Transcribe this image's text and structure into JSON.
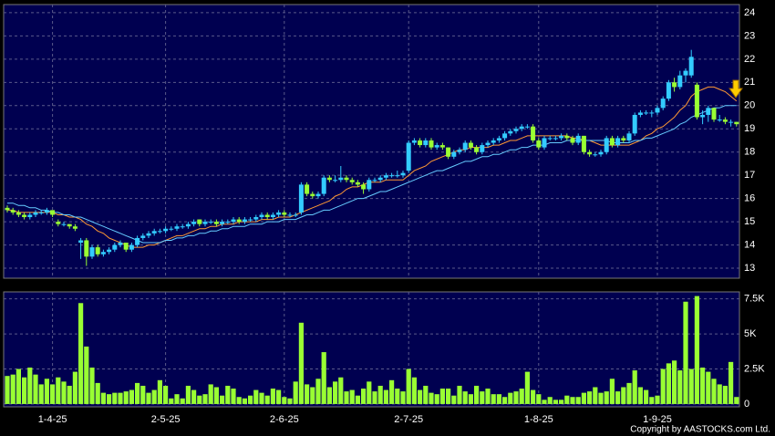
{
  "chart_data": {
    "type": "candlestick",
    "copyright": "Copyright by AASTOCKS.com Ltd.",
    "categories": [
      null,
      null,
      null,
      null,
      null,
      null,
      null,
      null,
      "1-4-25",
      null,
      null,
      null,
      null,
      null,
      null,
      null,
      null,
      null,
      null,
      null,
      null,
      null,
      null,
      null,
      null,
      null,
      null,
      null,
      "2-5-25",
      null,
      null,
      null,
      null,
      null,
      null,
      null,
      null,
      null,
      null,
      null,
      null,
      null,
      null,
      null,
      null,
      null,
      null,
      null,
      null,
      "2-6-25",
      null,
      null,
      null,
      null,
      null,
      null,
      null,
      null,
      null,
      null,
      null,
      null,
      null,
      null,
      null,
      null,
      null,
      null,
      null,
      null,
      null,
      "2-7-25",
      null,
      null,
      null,
      null,
      null,
      null,
      null,
      null,
      null,
      null,
      null,
      null,
      null,
      null,
      null,
      null,
      null,
      null,
      null,
      null,
      null,
      null,
      "1-8-25",
      null,
      null,
      null,
      null,
      null,
      null,
      null,
      null,
      null,
      null,
      null,
      null,
      null,
      null,
      null,
      null,
      null,
      null,
      null,
      null,
      "1-9-25",
      null,
      null,
      null,
      null,
      null,
      null,
      null,
      null,
      null,
      null,
      null,
      null,
      null,
      null
    ],
    "up_color": "#33ccff",
    "down_color": "#99ff33",
    "ohlc": [
      [
        15.6,
        15.7,
        15.4,
        15.5
      ],
      [
        15.5,
        15.6,
        15.3,
        15.4
      ],
      [
        15.4,
        15.5,
        15.2,
        15.3
      ],
      [
        15.3,
        15.4,
        15.1,
        15.2
      ],
      [
        15.2,
        15.4,
        15.1,
        15.3
      ],
      [
        15.3,
        15.5,
        15.2,
        15.4
      ],
      [
        15.4,
        15.5,
        15.3,
        15.4
      ],
      [
        15.4,
        15.6,
        15.3,
        15.5
      ],
      [
        15.5,
        15.5,
        15.2,
        15.3
      ],
      [
        15.0,
        15.1,
        14.8,
        14.9
      ],
      [
        14.9,
        15.0,
        14.8,
        14.9
      ],
      [
        14.9,
        14.9,
        14.7,
        14.8
      ],
      [
        14.8,
        14.9,
        14.6,
        14.7
      ],
      [
        14.1,
        14.3,
        13.4,
        14.2
      ],
      [
        14.2,
        14.3,
        13.1,
        13.5
      ],
      [
        13.5,
        14.0,
        13.4,
        13.9
      ],
      [
        13.9,
        14.0,
        13.5,
        13.6
      ],
      [
        13.6,
        13.8,
        13.5,
        13.7
      ],
      [
        13.7,
        13.9,
        13.6,
        13.8
      ],
      [
        13.8,
        14.1,
        13.7,
        14.0
      ],
      [
        14.0,
        14.2,
        13.9,
        14.1
      ],
      [
        14.1,
        14.1,
        13.7,
        13.8
      ],
      [
        13.8,
        14.1,
        13.7,
        14.0
      ],
      [
        14.0,
        14.4,
        13.9,
        14.3
      ],
      [
        14.3,
        14.5,
        14.2,
        14.4
      ],
      [
        14.4,
        14.6,
        14.3,
        14.5
      ],
      [
        14.5,
        14.7,
        14.4,
        14.6
      ],
      [
        14.6,
        14.7,
        14.5,
        14.6
      ],
      [
        14.6,
        14.8,
        14.5,
        14.7
      ],
      [
        14.7,
        14.8,
        14.6,
        14.7
      ],
      [
        14.7,
        14.9,
        14.6,
        14.8
      ],
      [
        14.8,
        14.9,
        14.7,
        14.8
      ],
      [
        14.8,
        15.0,
        14.7,
        14.9
      ],
      [
        14.9,
        15.1,
        14.8,
        15.0
      ],
      [
        15.1,
        15.1,
        14.8,
        14.9
      ],
      [
        14.9,
        15.1,
        14.8,
        15.0
      ],
      [
        15.0,
        15.1,
        14.9,
        15.0
      ],
      [
        15.0,
        15.1,
        14.8,
        14.9
      ],
      [
        14.9,
        15.1,
        14.8,
        15.0
      ],
      [
        15.0,
        15.1,
        14.9,
        15.0
      ],
      [
        15.0,
        15.2,
        14.9,
        15.1
      ],
      [
        15.1,
        15.2,
        14.9,
        15.0
      ],
      [
        15.0,
        15.2,
        14.9,
        15.1
      ],
      [
        15.1,
        15.2,
        15.0,
        15.1
      ],
      [
        15.1,
        15.3,
        15.0,
        15.2
      ],
      [
        15.2,
        15.4,
        15.1,
        15.3
      ],
      [
        15.3,
        15.4,
        15.1,
        15.2
      ],
      [
        15.2,
        15.4,
        15.1,
        15.3
      ],
      [
        15.3,
        15.5,
        15.2,
        15.4
      ],
      [
        15.4,
        15.5,
        15.2,
        15.3
      ],
      [
        15.3,
        15.4,
        15.2,
        15.3
      ],
      [
        15.3,
        15.4,
        15.2,
        15.3
      ],
      [
        15.4,
        16.7,
        15.3,
        16.6
      ],
      [
        16.6,
        16.7,
        16.1,
        16.2
      ],
      [
        16.2,
        16.3,
        16.0,
        16.1
      ],
      [
        16.1,
        16.3,
        16.0,
        16.2
      ],
      [
        16.2,
        17.0,
        16.1,
        16.9
      ],
      [
        16.9,
        17.0,
        16.7,
        16.8
      ],
      [
        16.8,
        17.0,
        16.7,
        16.8
      ],
      [
        16.8,
        17.4,
        16.7,
        16.9
      ],
      [
        16.9,
        17.0,
        16.7,
        16.8
      ],
      [
        16.8,
        16.9,
        16.6,
        16.7
      ],
      [
        16.7,
        16.8,
        16.5,
        16.6
      ],
      [
        16.6,
        16.7,
        16.2,
        16.4
      ],
      [
        16.4,
        16.9,
        16.3,
        16.8
      ],
      [
        16.8,
        16.9,
        16.7,
        16.8
      ],
      [
        16.8,
        17.0,
        16.7,
        16.9
      ],
      [
        16.9,
        17.1,
        16.8,
        17.0
      ],
      [
        17.0,
        17.1,
        16.9,
        17.0
      ],
      [
        17.0,
        17.2,
        16.9,
        17.0
      ],
      [
        17.0,
        17.2,
        16.9,
        17.1
      ],
      [
        17.2,
        18.5,
        17.1,
        18.4
      ],
      [
        18.4,
        18.6,
        18.3,
        18.5
      ],
      [
        18.5,
        18.6,
        18.2,
        18.3
      ],
      [
        18.3,
        18.6,
        18.2,
        18.5
      ],
      [
        18.5,
        18.6,
        18.1,
        18.2
      ],
      [
        18.2,
        18.4,
        18.1,
        18.3
      ],
      [
        18.3,
        18.4,
        18.1,
        18.2
      ],
      [
        18.2,
        18.2,
        17.7,
        17.8
      ],
      [
        17.8,
        18.1,
        17.7,
        18.0
      ],
      [
        18.0,
        18.2,
        17.9,
        18.1
      ],
      [
        18.1,
        18.5,
        18.0,
        18.4
      ],
      [
        18.4,
        18.5,
        18.1,
        18.2
      ],
      [
        18.2,
        18.3,
        17.9,
        18.0
      ],
      [
        18.0,
        18.4,
        17.9,
        18.3
      ],
      [
        18.3,
        18.5,
        18.2,
        18.4
      ],
      [
        18.4,
        18.6,
        18.3,
        18.5
      ],
      [
        18.5,
        18.7,
        18.4,
        18.6
      ],
      [
        18.6,
        18.9,
        18.5,
        18.8
      ],
      [
        18.8,
        19.0,
        18.7,
        18.9
      ],
      [
        18.9,
        19.1,
        18.8,
        19.0
      ],
      [
        19.0,
        19.2,
        18.9,
        19.1
      ],
      [
        19.1,
        19.2,
        19.0,
        19.1
      ],
      [
        19.1,
        19.2,
        18.4,
        18.5
      ],
      [
        18.5,
        18.6,
        18.1,
        18.2
      ],
      [
        18.2,
        18.7,
        18.1,
        18.6
      ],
      [
        18.6,
        18.7,
        18.5,
        18.6
      ],
      [
        18.6,
        18.7,
        18.5,
        18.6
      ],
      [
        18.6,
        18.8,
        18.5,
        18.7
      ],
      [
        18.7,
        18.8,
        18.5,
        18.6
      ],
      [
        18.6,
        18.7,
        18.3,
        18.4
      ],
      [
        18.4,
        18.8,
        18.3,
        18.7
      ],
      [
        18.7,
        18.7,
        17.9,
        18.0
      ],
      [
        18.0,
        18.1,
        17.8,
        17.9
      ],
      [
        17.9,
        18.0,
        17.8,
        17.9
      ],
      [
        17.9,
        18.1,
        17.8,
        18.0
      ],
      [
        18.0,
        18.7,
        17.9,
        18.6
      ],
      [
        18.6,
        18.7,
        18.2,
        18.3
      ],
      [
        18.3,
        18.7,
        18.2,
        18.6
      ],
      [
        18.6,
        18.7,
        18.4,
        18.5
      ],
      [
        18.5,
        18.9,
        18.4,
        18.8
      ],
      [
        18.8,
        19.7,
        18.7,
        19.6
      ],
      [
        19.6,
        19.8,
        19.5,
        19.7
      ],
      [
        19.7,
        19.8,
        19.6,
        19.7
      ],
      [
        19.7,
        19.8,
        19.5,
        19.7
      ],
      [
        19.7,
        20.0,
        19.6,
        19.9
      ],
      [
        19.9,
        20.4,
        19.8,
        20.3
      ],
      [
        20.3,
        21.1,
        20.2,
        21.0
      ],
      [
        21.0,
        21.2,
        20.6,
        20.8
      ],
      [
        20.8,
        21.5,
        20.7,
        21.3
      ],
      [
        21.3,
        21.6,
        21.0,
        21.5
      ],
      [
        21.3,
        22.4,
        21.2,
        22.1
      ],
      [
        20.9,
        21.0,
        19.4,
        19.5
      ],
      [
        19.5,
        19.8,
        19.2,
        19.6
      ],
      [
        19.6,
        20.0,
        19.3,
        19.9
      ],
      [
        19.9,
        19.9,
        19.3,
        19.4
      ],
      [
        19.4,
        19.6,
        19.3,
        19.4
      ],
      [
        19.4,
        19.5,
        19.2,
        19.3
      ],
      [
        19.3,
        19.4,
        19.1,
        19.3
      ],
      [
        19.3,
        19.3,
        19.1,
        19.2
      ]
    ],
    "ma_lines": [
      {
        "color": "#ff9933",
        "values": [
          15.5,
          15.5,
          15.4,
          15.4,
          15.4,
          15.4,
          15.4,
          15.4,
          15.4,
          15.3,
          15.3,
          15.2,
          15.2,
          15.1,
          14.9,
          14.8,
          14.6,
          14.5,
          14.3,
          14.2,
          14.1,
          14.0,
          13.9,
          13.9,
          13.9,
          14.0,
          14.0,
          14.1,
          14.2,
          14.3,
          14.4,
          14.4,
          14.5,
          14.6,
          14.7,
          14.7,
          14.8,
          14.8,
          14.9,
          14.9,
          14.9,
          15.0,
          15.0,
          15.0,
          15.0,
          15.1,
          15.1,
          15.1,
          15.2,
          15.2,
          15.2,
          15.3,
          15.4,
          15.5,
          15.6,
          15.7,
          15.8,
          15.9,
          16.1,
          16.2,
          16.4,
          16.5,
          16.5,
          16.6,
          16.7,
          16.7,
          16.7,
          16.8,
          16.8,
          16.8,
          16.8,
          17.0,
          17.2,
          17.3,
          17.4,
          17.6,
          17.7,
          17.8,
          17.9,
          18.0,
          18.1,
          18.1,
          18.2,
          18.2,
          18.2,
          18.2,
          18.3,
          18.3,
          18.4,
          18.5,
          18.5,
          18.6,
          18.7,
          18.7,
          18.7,
          18.7,
          18.7,
          18.7,
          18.7,
          18.7,
          18.6,
          18.6,
          18.5,
          18.5,
          18.4,
          18.3,
          18.3,
          18.3,
          18.3,
          18.3,
          18.3,
          18.4,
          18.5,
          18.7,
          18.8,
          19.0,
          19.1,
          19.3,
          19.5,
          19.8,
          20.0,
          20.4,
          20.6,
          20.7,
          20.8,
          20.8,
          20.7,
          20.6,
          20.4,
          20.2
        ]
      },
      {
        "color": "#66ccff",
        "values": [
          15.8,
          15.8,
          15.7,
          15.7,
          15.6,
          15.6,
          15.5,
          15.5,
          15.4,
          15.4,
          15.3,
          15.3,
          15.2,
          15.2,
          15.1,
          15.0,
          14.9,
          14.8,
          14.7,
          14.6,
          14.5,
          14.4,
          14.3,
          14.2,
          14.1,
          14.1,
          14.1,
          14.1,
          14.2,
          14.2,
          14.3,
          14.3,
          14.4,
          14.4,
          14.5,
          14.5,
          14.6,
          14.6,
          14.7,
          14.7,
          14.8,
          14.8,
          14.8,
          14.9,
          14.9,
          14.9,
          15.0,
          15.0,
          15.0,
          15.1,
          15.1,
          15.1,
          15.2,
          15.3,
          15.3,
          15.4,
          15.5,
          15.5,
          15.6,
          15.7,
          15.8,
          15.9,
          16.0,
          16.0,
          16.1,
          16.2,
          16.3,
          16.3,
          16.4,
          16.5,
          16.6,
          16.7,
          16.8,
          16.9,
          17.0,
          17.1,
          17.2,
          17.2,
          17.3,
          17.4,
          17.5,
          17.6,
          17.6,
          17.7,
          17.8,
          17.8,
          17.9,
          17.9,
          18.0,
          18.1,
          18.1,
          18.2,
          18.2,
          18.3,
          18.3,
          18.3,
          18.4,
          18.4,
          18.4,
          18.5,
          18.5,
          18.5,
          18.5,
          18.5,
          18.5,
          18.5,
          18.5,
          18.4,
          18.4,
          18.4,
          18.4,
          18.5,
          18.5,
          18.6,
          18.6,
          18.7,
          18.8,
          18.9,
          19.0,
          19.2,
          19.3,
          19.5,
          19.6,
          19.7,
          19.8,
          19.9,
          19.9,
          20.0,
          20.0,
          20.0
        ]
      }
    ],
    "ylim": [
      12.57,
      24.35
    ],
    "yticks": [
      13,
      14,
      15,
      16,
      17,
      18,
      19,
      20,
      21,
      22,
      23,
      24
    ],
    "grid": true,
    "volume": {
      "color": "#99ff33",
      "ylim": [
        -200,
        8000
      ],
      "yticks": [
        0,
        {
          "value": 2500,
          "label": "2.5K"
        },
        {
          "value": 5000,
          "label": "5K"
        },
        {
          "value": 7500,
          "label": "7.5K"
        }
      ],
      "values": [
        2000,
        2100,
        2500,
        1900,
        2600,
        2100,
        1400,
        1800,
        1400,
        1900,
        1600,
        1300,
        2300,
        7200,
        4100,
        2600,
        1500,
        800,
        700,
        800,
        800,
        900,
        1000,
        1500,
        1300,
        800,
        1000,
        1700,
        1300,
        400,
        700,
        400,
        1300,
        1000,
        600,
        700,
        1400,
        1200,
        600,
        1300,
        1100,
        500,
        400,
        600,
        1000,
        800,
        600,
        1100,
        1000,
        500,
        400,
        1600,
        5800,
        1400,
        1200,
        1800,
        3700,
        1200,
        1600,
        1900,
        900,
        1000,
        600,
        1100,
        1600,
        900,
        1300,
        1000,
        1700,
        1100,
        900,
        2500,
        1900,
        1000,
        1300,
        800,
        700,
        1100,
        1100,
        600,
        1300,
        900,
        700,
        1300,
        900,
        1100,
        700,
        700,
        500,
        800,
        900,
        1100,
        2300,
        1000,
        700,
        300,
        500,
        300,
        300,
        600,
        500,
        500,
        800,
        900,
        1200,
        800,
        900,
        1800,
        900,
        1200,
        1500,
        2400,
        1200,
        1000,
        500,
        600,
        2500,
        2900,
        3100,
        2400,
        7300,
        2500,
        7700,
        2600,
        2300,
        1800,
        1400,
        1300,
        3000,
        500
      ]
    }
  }
}
